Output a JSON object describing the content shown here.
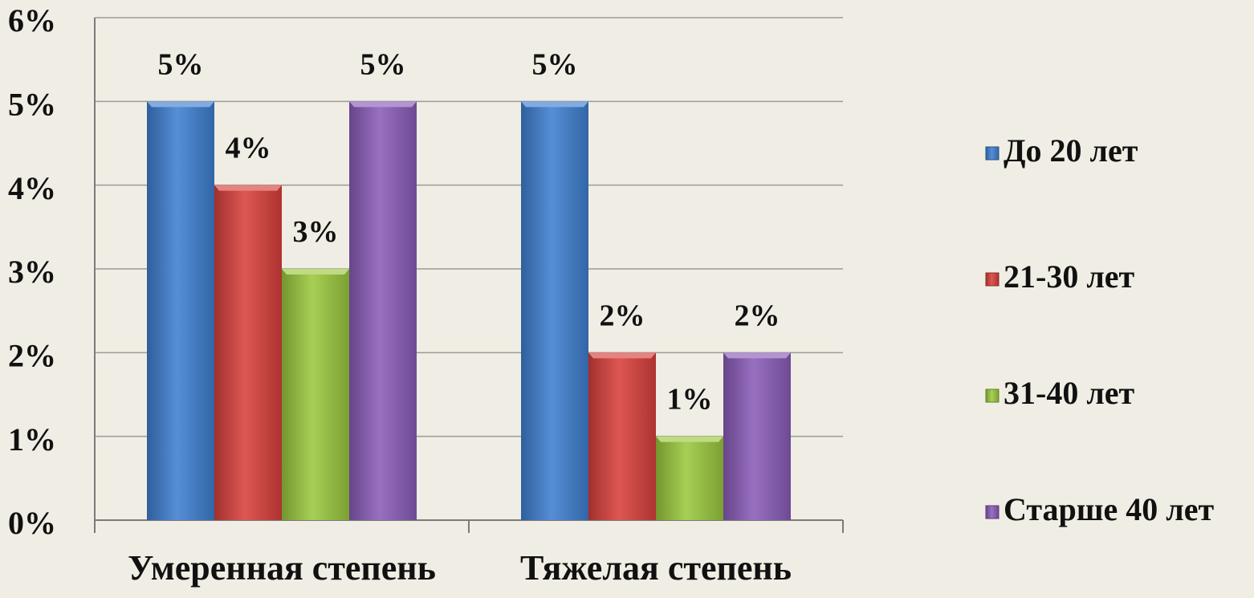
{
  "chart_data": {
    "type": "bar",
    "title": "",
    "xlabel": "",
    "ylabel": "",
    "categories": [
      "Умеренная степень",
      "Тяжелая степень"
    ],
    "ylim": [
      0,
      6
    ],
    "yticks": [
      "0%",
      "1%",
      "2%",
      "3%",
      "4%",
      "5%",
      "6%"
    ],
    "grid": true,
    "legend_position": "right",
    "series": [
      {
        "name": "До 20 лет",
        "values": [
          5,
          5
        ],
        "labels": [
          "5%",
          "5%"
        ],
        "color": "#3f7fd0"
      },
      {
        "name": "21-30 лет",
        "values": [
          4,
          2
        ],
        "labels": [
          "4%",
          "2%"
        ],
        "color": "#d8403c"
      },
      {
        "name": "31-40 лет",
        "values": [
          3,
          1
        ],
        "labels": [
          "3%",
          "1%"
        ],
        "color": "#9bc83e"
      },
      {
        "name": "Старше 40 лет",
        "values": [
          5,
          2
        ],
        "labels": [
          "5%",
          "2%"
        ],
        "color": "#8a5cb8"
      }
    ]
  }
}
